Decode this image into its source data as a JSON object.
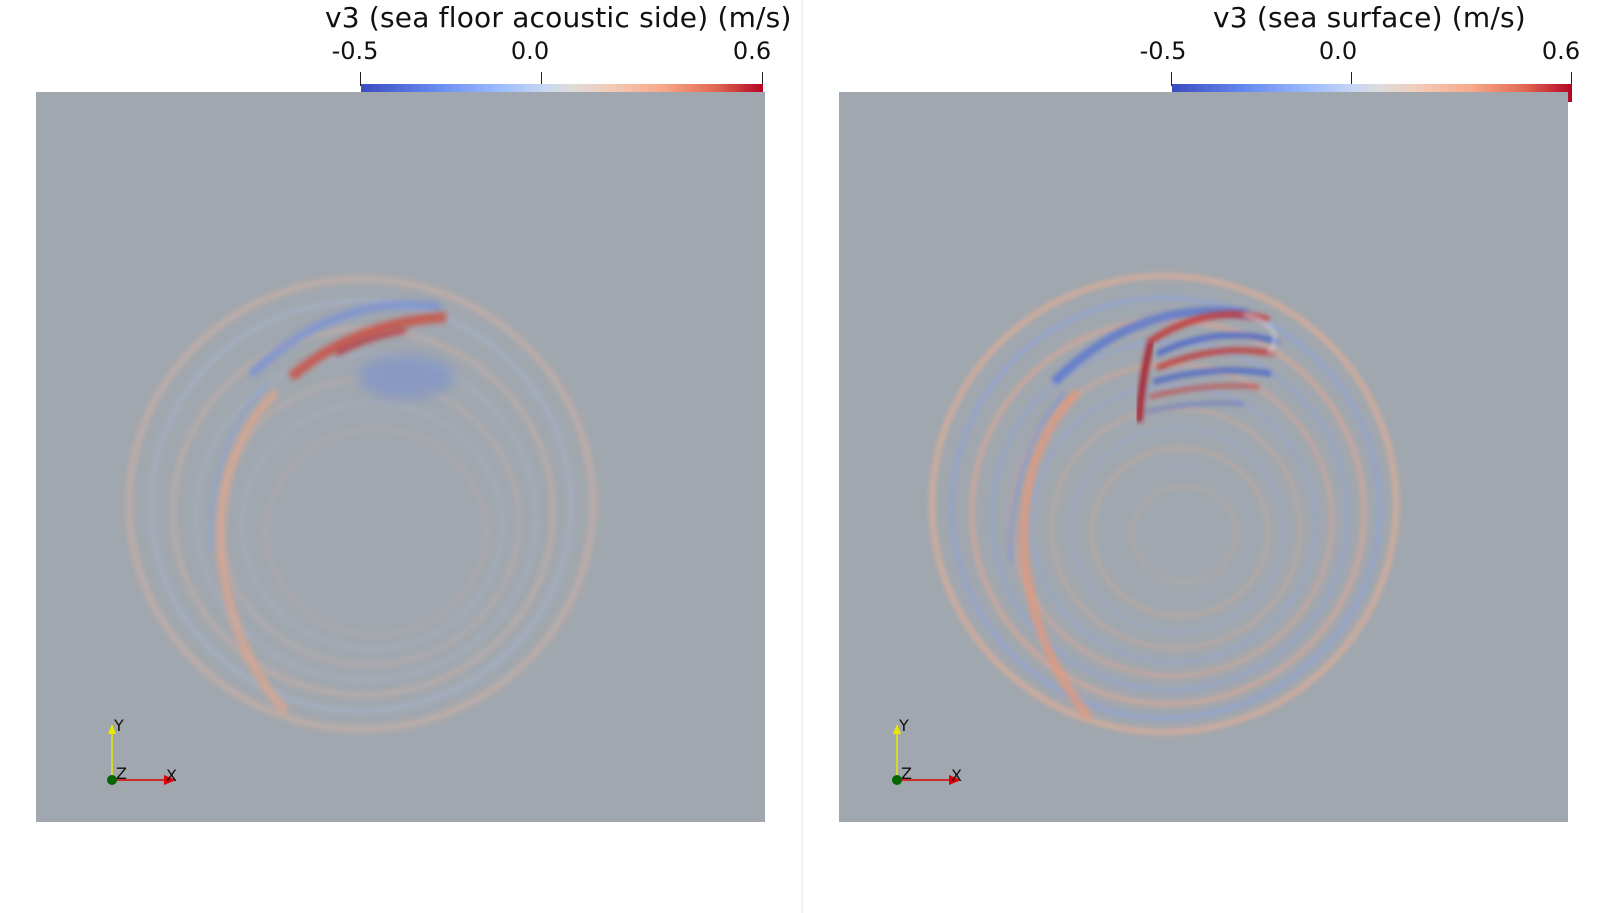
{
  "panels": [
    {
      "title": "v3 (sea floor acoustic side) (m/s)",
      "colorbar": {
        "min_label": "-0.5",
        "mid_label": "0.0",
        "max_label": "0.6"
      },
      "axes": {
        "y": "Y",
        "z": "Z",
        "x": "X"
      }
    },
    {
      "title": "v3 (sea surface) (m/s)",
      "colorbar": {
        "min_label": "-0.5",
        "mid_label": "0.0",
        "max_label": "0.6"
      },
      "axes": {
        "y": "Y",
        "z": "Z",
        "x": "X"
      }
    }
  ],
  "colors": {
    "background": "#a1a7ae",
    "positive": "#b40426",
    "negative": "#3b4cc0",
    "neutral": "#dddcdc",
    "axis_y": "#e8e800",
    "axis_x": "#e00000",
    "axis_origin": "#006400"
  }
}
